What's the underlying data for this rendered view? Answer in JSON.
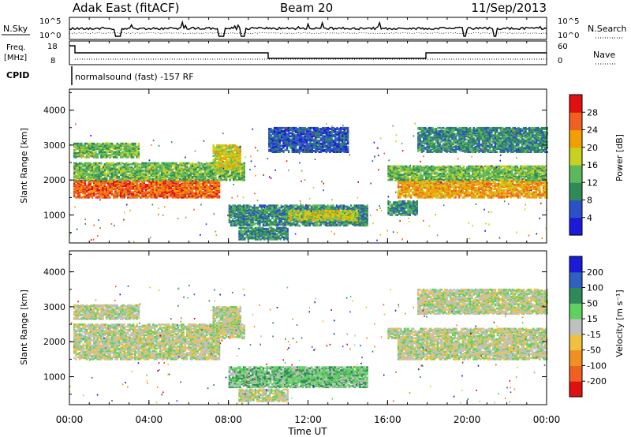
{
  "header": {
    "station": "Adak East (fitACF)",
    "beam": "Beam 20",
    "date": "11/Sep/2013"
  },
  "nsky": {
    "label": "N.Sky",
    "tick_top": "10^5",
    "tick_bottom": "10^0",
    "right_label": "N.Search",
    "right_tick_top": "10^5",
    "right_tick_bottom": "10^0"
  },
  "freq": {
    "label_top": "Freq.",
    "label_bottom": "[MHz]",
    "tick_top": "18",
    "tick_bottom": "8",
    "right_label": "Nave",
    "right_tick_top": "60",
    "right_tick_bottom": "0"
  },
  "cpid": {
    "label": "CPID",
    "value": "normalsound (fast) -157 RF"
  },
  "chart_data": [
    {
      "type": "heatmap",
      "name": "power",
      "ylabel": "Slant Range [km]",
      "yticks": [
        "1000",
        "2000",
        "3000",
        "4000"
      ],
      "ylim": [
        200,
        4600
      ],
      "xlim": [
        0,
        24
      ],
      "colorbar": {
        "label": "Power [dB]",
        "ticks": [
          "4",
          "8",
          "12",
          "16",
          "20",
          "24",
          "28"
        ],
        "colors": [
          "#1a1ad8",
          "#2b50c8",
          "#2e8b57",
          "#5cb85c",
          "#c8d020",
          "#f0a000",
          "#f06020",
          "#e01010"
        ]
      },
      "regions": [
        {
          "t0": 0.2,
          "t1": 7.5,
          "r0": 1500,
          "r1": 2000,
          "level": 6
        },
        {
          "t0": 0.2,
          "t1": 8.8,
          "r0": 2000,
          "r1": 2500,
          "level": 3
        },
        {
          "t0": 0.2,
          "t1": 3.5,
          "r0": 2650,
          "r1": 3050,
          "level": 3
        },
        {
          "t0": 7.2,
          "t1": 8.6,
          "r0": 2300,
          "r1": 3000,
          "level": 4
        },
        {
          "t0": 8.0,
          "t1": 15.0,
          "r0": 700,
          "r1": 1300,
          "level": 2
        },
        {
          "t0": 11.0,
          "t1": 14.5,
          "r0": 850,
          "r1": 1150,
          "level": 4
        },
        {
          "t0": 8.5,
          "t1": 11.0,
          "r0": 300,
          "r1": 650,
          "level": 2
        },
        {
          "t0": 10.0,
          "t1": 14.0,
          "r0": 2800,
          "r1": 3500,
          "level": 1
        },
        {
          "t0": 16.0,
          "t1": 17.5,
          "r0": 1000,
          "r1": 1400,
          "level": 2
        },
        {
          "t0": 16.5,
          "t1": 24.0,
          "r0": 1500,
          "r1": 2000,
          "level": 5
        },
        {
          "t0": 16.0,
          "t1": 24.0,
          "r0": 2000,
          "r1": 2400,
          "level": 3
        },
        {
          "t0": 17.5,
          "t1": 24.0,
          "r0": 2800,
          "r1": 3500,
          "level": 2
        }
      ]
    },
    {
      "type": "heatmap",
      "name": "velocity",
      "ylabel": "Slant Range [km]",
      "yticks": [
        "1000",
        "2000",
        "3000",
        "4000"
      ],
      "ylim": [
        200,
        4600
      ],
      "xlim": [
        0,
        24
      ],
      "xticks": [
        "00:00",
        "04:00",
        "08:00",
        "12:00",
        "16:00",
        "20:00",
        "00:00"
      ],
      "xlabel": "Time UT",
      "colorbar": {
        "label": "Velocity [m s⁻¹]",
        "ticks": [
          "-200",
          "-100",
          "-50",
          "-15",
          "15",
          "50",
          "100",
          "200"
        ],
        "colors": [
          "#e01010",
          "#f06020",
          "#f09020",
          "#f0c040",
          "#c0c0c0",
          "#60d060",
          "#2e8b57",
          "#3060c0",
          "#1a1ad8"
        ]
      },
      "regions": [
        {
          "t0": 0.2,
          "t1": 7.5,
          "r0": 1500,
          "r1": 2100,
          "level": 4
        },
        {
          "t0": 0.2,
          "t1": 8.8,
          "r0": 2100,
          "r1": 2500,
          "level": 4
        },
        {
          "t0": 0.2,
          "t1": 3.5,
          "r0": 2650,
          "r1": 3050,
          "level": 4
        },
        {
          "t0": 7.2,
          "t1": 8.6,
          "r0": 2300,
          "r1": 3000,
          "level": 4
        },
        {
          "t0": 8.0,
          "t1": 15.0,
          "r0": 700,
          "r1": 1300,
          "level": 5
        },
        {
          "t0": 11.0,
          "t1": 14.5,
          "r0": 850,
          "r1": 1200,
          "level": 5
        },
        {
          "t0": 8.5,
          "t1": 11.0,
          "r0": 300,
          "r1": 650,
          "level": 4
        },
        {
          "t0": 16.5,
          "t1": 24.0,
          "r0": 1500,
          "r1": 2100,
          "level": 4
        },
        {
          "t0": 16.0,
          "t1": 24.0,
          "r0": 2100,
          "r1": 2400,
          "level": 4
        },
        {
          "t0": 17.5,
          "t1": 24.0,
          "r0": 2800,
          "r1": 3500,
          "level": 4
        }
      ]
    }
  ]
}
